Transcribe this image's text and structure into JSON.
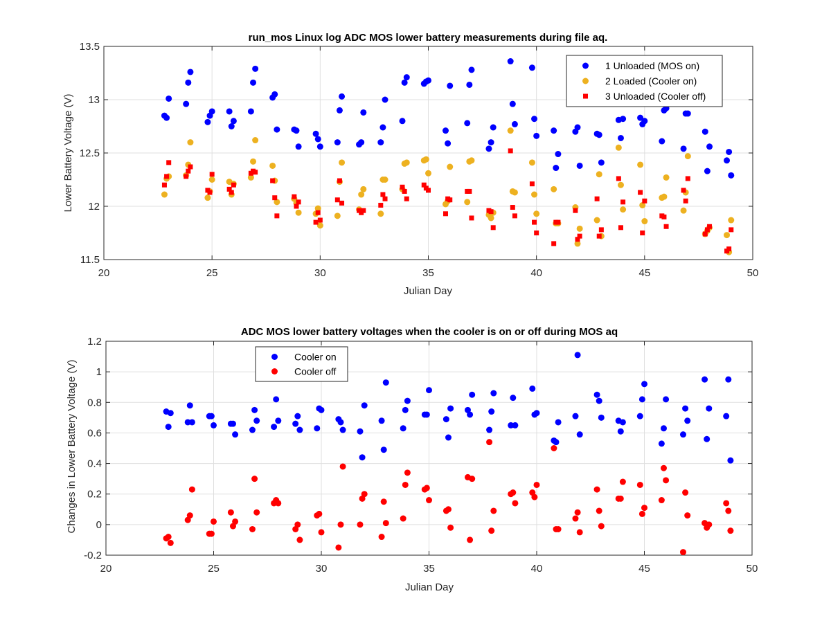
{
  "chart_data": [
    {
      "type": "scatter",
      "title": "run_mos Linux log ADC MOS lower battery measurements during file aq.",
      "xlabel": "Julian Day",
      "ylabel": "Lower Battery Voltage (V)",
      "xlim": [
        20,
        50
      ],
      "ylim": [
        11.5,
        13.5
      ],
      "xticks": [
        "20",
        "25",
        "30",
        "35",
        "40",
        "45",
        "50"
      ],
      "yticks": [
        "11.5",
        "12",
        "12.5",
        "13",
        "13.5"
      ],
      "grid": true,
      "legend_position": "top-right",
      "series": [
        {
          "name": "1 Unloaded (MOS on)",
          "color": "#0000ff",
          "marker": "circle",
          "x": [
            22.8,
            22.9,
            23.0,
            23.8,
            23.9,
            24.0,
            24.8,
            24.9,
            25.0,
            25.8,
            25.9,
            26.0,
            26.8,
            26.9,
            27.0,
            27.8,
            27.9,
            28.0,
            28.8,
            28.9,
            29.0,
            29.8,
            29.9,
            30.0,
            30.8,
            30.9,
            31.0,
            31.8,
            31.9,
            32.0,
            32.8,
            32.9,
            33.0,
            33.8,
            33.9,
            34.0,
            34.8,
            34.9,
            35.0,
            35.8,
            35.9,
            36.0,
            36.8,
            36.9,
            37.0,
            37.8,
            37.9,
            38.0,
            38.8,
            38.9,
            39.0,
            39.8,
            39.9,
            40.0,
            40.8,
            40.9,
            41.0,
            41.8,
            41.9,
            42.0,
            42.8,
            42.9,
            43.0,
            43.8,
            43.9,
            44.0,
            44.8,
            44.9,
            45.0,
            45.8,
            45.9,
            46.0,
            46.8,
            46.9,
            47.0,
            47.8,
            47.9,
            48.0,
            48.8,
            48.9,
            49.0
          ],
          "y": [
            12.85,
            12.83,
            13.01,
            12.96,
            13.16,
            13.26,
            12.79,
            12.85,
            12.89,
            12.89,
            12.75,
            12.8,
            12.89,
            13.16,
            13.29,
            13.02,
            13.05,
            12.72,
            12.72,
            12.71,
            12.56,
            12.68,
            12.63,
            12.56,
            12.6,
            12.9,
            13.03,
            12.58,
            12.6,
            12.88,
            12.6,
            12.74,
            13.0,
            12.8,
            13.16,
            13.21,
            13.15,
            13.17,
            13.18,
            12.71,
            12.59,
            13.13,
            12.78,
            13.14,
            13.28,
            12.54,
            12.6,
            12.74,
            13.36,
            12.96,
            12.77,
            13.3,
            12.82,
            12.66,
            12.71,
            12.36,
            12.49,
            12.7,
            12.74,
            12.38,
            12.68,
            12.67,
            12.41,
            12.81,
            12.64,
            12.82,
            12.83,
            12.77,
            12.8,
            12.61,
            12.9,
            12.92,
            12.54,
            12.87,
            12.87,
            12.7,
            12.33,
            12.56,
            12.43,
            12.51,
            12.29
          ]
        },
        {
          "name": "2 Loaded (Cooler on)",
          "color": "#edb120",
          "marker": "circle",
          "x": [
            22.8,
            22.9,
            23.0,
            23.8,
            23.9,
            24.0,
            24.8,
            24.9,
            25.0,
            25.8,
            25.9,
            26.0,
            26.8,
            26.9,
            27.0,
            27.8,
            27.9,
            28.0,
            28.8,
            28.9,
            29.0,
            29.8,
            29.9,
            30.0,
            30.8,
            30.9,
            31.0,
            31.8,
            31.9,
            32.0,
            32.8,
            32.9,
            33.0,
            33.8,
            33.9,
            34.0,
            34.8,
            34.9,
            35.0,
            35.8,
            35.9,
            36.0,
            36.8,
            36.9,
            37.0,
            37.8,
            37.9,
            38.0,
            38.8,
            38.9,
            39.0,
            39.8,
            39.9,
            40.0,
            40.8,
            40.9,
            41.0,
            41.8,
            41.9,
            42.0,
            42.8,
            42.9,
            43.0,
            43.8,
            43.9,
            44.0,
            44.8,
            44.9,
            45.0,
            45.8,
            45.9,
            46.0,
            46.8,
            46.9,
            47.0,
            47.8,
            47.9,
            48.0,
            48.8,
            48.9,
            49.0
          ],
          "y": [
            12.11,
            12.26,
            12.28,
            12.29,
            12.39,
            12.6,
            12.08,
            12.14,
            12.25,
            12.23,
            12.11,
            12.21,
            12.27,
            12.42,
            12.62,
            12.38,
            12.24,
            12.04,
            12.07,
            12.03,
            11.94,
            11.93,
            11.98,
            11.82,
            11.91,
            12.23,
            12.41,
            11.97,
            12.11,
            12.16,
            11.93,
            12.25,
            12.25,
            12.16,
            12.4,
            12.41,
            12.43,
            12.44,
            12.31,
            12.02,
            12.05,
            12.37,
            12.04,
            12.42,
            12.43,
            11.92,
            11.89,
            11.94,
            12.71,
            12.14,
            12.13,
            12.41,
            12.11,
            11.93,
            12.16,
            11.84,
            11.84,
            11.99,
            11.65,
            11.79,
            11.87,
            12.3,
            11.72,
            12.55,
            12.2,
            11.97,
            12.39,
            12.01,
            11.86,
            12.08,
            12.09,
            12.27,
            11.96,
            12.13,
            12.47,
            11.74,
            11.77,
            11.8,
            11.73,
            11.57,
            11.87
          ]
        },
        {
          "name": "3 Unloaded (Cooler off)",
          "color": "#ff0000",
          "marker": "square",
          "x": [
            22.8,
            22.9,
            23.0,
            23.8,
            23.9,
            24.0,
            24.8,
            24.9,
            25.0,
            25.8,
            25.9,
            26.0,
            26.8,
            26.9,
            27.0,
            27.8,
            27.9,
            28.0,
            28.8,
            28.9,
            29.0,
            29.8,
            29.9,
            30.0,
            30.8,
            30.9,
            31.0,
            31.8,
            31.9,
            32.0,
            32.8,
            32.9,
            33.0,
            33.8,
            33.9,
            34.0,
            34.8,
            34.9,
            35.0,
            35.8,
            35.9,
            36.0,
            36.8,
            36.9,
            37.0,
            37.8,
            37.9,
            38.0,
            38.8,
            38.9,
            39.0,
            39.8,
            39.9,
            40.0,
            40.8,
            40.9,
            41.0,
            41.8,
            41.9,
            42.0,
            42.8,
            42.9,
            43.0,
            43.8,
            43.9,
            44.0,
            44.8,
            44.9,
            45.0,
            45.8,
            45.9,
            46.0,
            46.8,
            46.9,
            47.0,
            47.8,
            47.9,
            48.0,
            48.8,
            48.9,
            49.0
          ],
          "y": [
            12.2,
            12.28,
            12.41,
            12.28,
            12.33,
            12.37,
            12.15,
            12.13,
            12.3,
            12.16,
            12.13,
            12.2,
            12.31,
            12.33,
            12.32,
            12.24,
            12.08,
            11.91,
            12.09,
            12.0,
            12.04,
            11.85,
            11.94,
            11.87,
            12.06,
            12.24,
            12.03,
            11.96,
            11.94,
            11.96,
            12.01,
            12.11,
            12.07,
            12.18,
            12.14,
            12.07,
            12.2,
            12.17,
            12.15,
            11.93,
            12.07,
            12.06,
            12.14,
            12.14,
            11.89,
            11.96,
            11.95,
            11.8,
            12.52,
            11.99,
            11.91,
            12.21,
            11.85,
            11.75,
            11.65,
            11.85,
            11.85,
            11.96,
            11.69,
            11.72,
            12.07,
            11.72,
            11.78,
            12.26,
            11.8,
            12.04,
            12.13,
            11.75,
            12.05,
            11.91,
            11.9,
            11.81,
            12.15,
            12.05,
            12.26,
            11.74,
            11.78,
            11.81,
            11.58,
            11.6,
            11.78
          ]
        }
      ]
    },
    {
      "type": "scatter",
      "title": "ADC MOS lower battery voltages when the cooler is on or off during MOS aq",
      "xlabel": "Julian Day",
      "ylabel": "Changes in Lower Battery Voltage (V)",
      "xlim": [
        20,
        50
      ],
      "ylim": [
        -0.2,
        1.2
      ],
      "xticks": [
        "20",
        "25",
        "30",
        "35",
        "40",
        "45",
        "50"
      ],
      "yticks": [
        "-0.2",
        "0",
        "0.2",
        "0.4",
        "0.6",
        "0.8",
        "1",
        "1.2"
      ],
      "grid": true,
      "legend_position": "top-left",
      "series": [
        {
          "name": "Cooler on",
          "color": "#0000ff",
          "marker": "circle",
          "x": [
            22.8,
            22.9,
            23.0,
            23.8,
            23.9,
            24.0,
            24.8,
            24.9,
            25.0,
            25.8,
            25.9,
            26.0,
            26.8,
            26.9,
            27.0,
            27.8,
            27.9,
            28.0,
            28.8,
            28.9,
            29.0,
            29.8,
            29.9,
            30.0,
            30.8,
            30.9,
            31.0,
            31.8,
            31.9,
            32.0,
            32.8,
            32.9,
            33.0,
            33.8,
            33.9,
            34.0,
            34.8,
            34.9,
            35.0,
            35.8,
            35.9,
            36.0,
            36.8,
            36.9,
            37.0,
            37.8,
            37.9,
            38.0,
            38.8,
            38.9,
            39.0,
            39.8,
            39.9,
            40.0,
            40.8,
            40.9,
            41.0,
            41.8,
            41.9,
            42.0,
            42.8,
            42.9,
            43.0,
            43.8,
            43.9,
            44.0,
            44.8,
            44.9,
            45.0,
            45.8,
            45.9,
            46.0,
            46.8,
            46.9,
            47.0,
            47.8,
            47.9,
            48.0,
            48.8,
            48.9,
            49.0
          ],
          "y": [
            0.74,
            0.64,
            0.73,
            0.67,
            0.78,
            0.67,
            0.71,
            0.71,
            0.65,
            0.66,
            0.66,
            0.59,
            0.62,
            0.75,
            0.68,
            0.64,
            0.82,
            0.68,
            0.66,
            0.71,
            0.62,
            0.63,
            0.76,
            0.75,
            0.69,
            0.67,
            0.62,
            0.61,
            0.44,
            0.78,
            0.68,
            0.49,
            0.93,
            0.63,
            0.75,
            0.81,
            0.72,
            0.72,
            0.88,
            0.69,
            0.57,
            0.76,
            0.75,
            0.72,
            0.85,
            0.62,
            0.74,
            0.86,
            0.65,
            0.83,
            0.65,
            0.89,
            0.72,
            0.73,
            0.55,
            0.54,
            0.67,
            0.71,
            1.11,
            0.59,
            0.85,
            0.81,
            0.7,
            0.68,
            0.61,
            0.67,
            0.71,
            0.82,
            0.92,
            0.53,
            0.63,
            0.82,
            0.59,
            0.76,
            0.68,
            0.95,
            0.56,
            0.76,
            0.71,
            0.95,
            0.42
          ]
        },
        {
          "name": "Cooler off",
          "color": "#ff0000",
          "marker": "circle",
          "x": [
            22.8,
            22.9,
            23.0,
            23.8,
            23.9,
            24.0,
            24.8,
            24.9,
            25.0,
            25.8,
            25.9,
            26.0,
            26.8,
            26.9,
            27.0,
            27.8,
            27.9,
            28.0,
            28.8,
            28.9,
            29.0,
            29.8,
            29.9,
            30.0,
            30.8,
            30.9,
            31.0,
            31.8,
            31.9,
            32.0,
            32.8,
            32.9,
            33.0,
            33.8,
            33.9,
            34.0,
            34.8,
            34.9,
            35.0,
            35.8,
            35.9,
            36.0,
            36.8,
            36.9,
            37.0,
            37.8,
            37.9,
            38.0,
            38.8,
            38.9,
            39.0,
            39.8,
            39.9,
            40.0,
            40.8,
            40.9,
            41.0,
            41.8,
            41.9,
            42.0,
            42.8,
            42.9,
            43.0,
            43.8,
            43.9,
            44.0,
            44.8,
            44.9,
            45.0,
            45.8,
            45.9,
            46.0,
            46.8,
            46.9,
            47.0,
            47.8,
            47.9,
            48.0,
            48.8,
            48.9,
            49.0
          ],
          "y": [
            -0.09,
            -0.08,
            -0.12,
            0.03,
            0.06,
            0.23,
            -0.06,
            -0.06,
            0.02,
            0.08,
            -0.01,
            0.02,
            -0.03,
            0.3,
            0.08,
            0.14,
            0.16,
            0.14,
            -0.03,
            0.0,
            -0.1,
            0.06,
            0.07,
            -0.05,
            -0.15,
            0.0,
            0.38,
            0.0,
            0.17,
            0.2,
            -0.08,
            0.15,
            0.01,
            0.04,
            0.26,
            0.34,
            0.23,
            0.24,
            0.16,
            0.09,
            0.1,
            -0.02,
            0.31,
            -0.1,
            0.3,
            0.54,
            -0.04,
            0.09,
            0.2,
            0.21,
            0.14,
            0.21,
            0.18,
            0.26,
            0.5,
            -0.03,
            -0.03,
            0.04,
            0.08,
            -0.05,
            0.23,
            0.09,
            -0.01,
            0.17,
            0.17,
            0.28,
            0.26,
            0.07,
            0.11,
            0.16,
            0.37,
            0.29,
            -0.18,
            0.21,
            0.06,
            0.01,
            -0.02,
            0.0,
            0.14,
            0.09,
            -0.04
          ]
        }
      ]
    }
  ]
}
